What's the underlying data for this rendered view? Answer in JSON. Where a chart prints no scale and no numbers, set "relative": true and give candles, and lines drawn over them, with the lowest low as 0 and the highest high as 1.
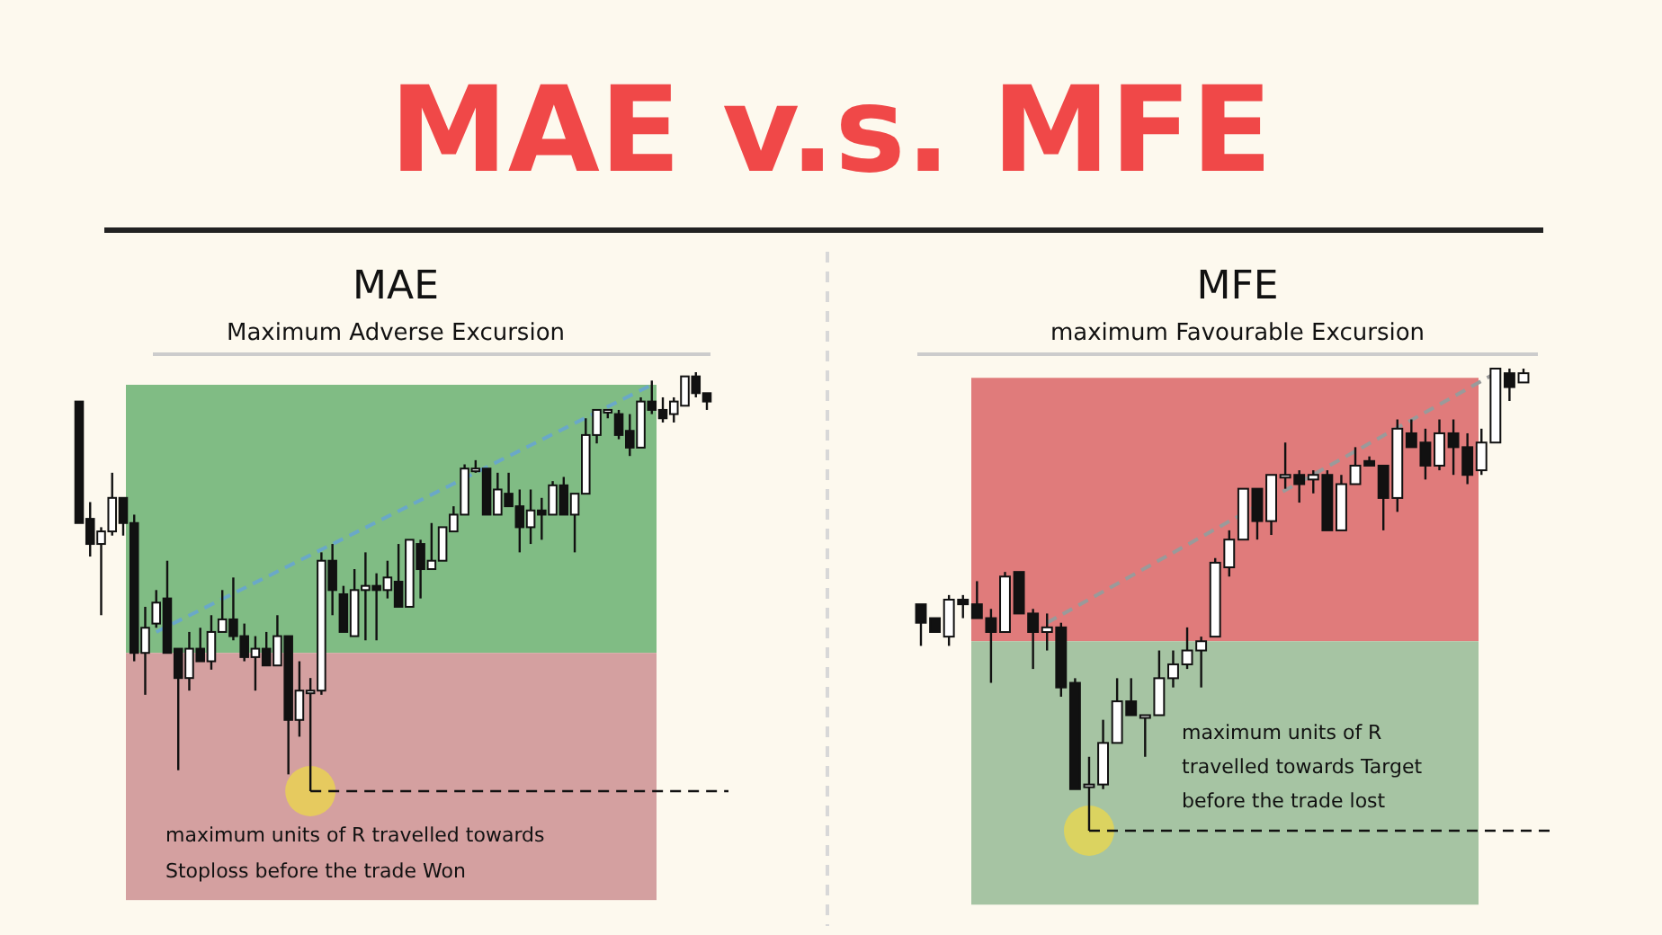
{
  "chart_data": [
    {
      "type": "other",
      "title": "MAE v.s. MFE"
    },
    {
      "type": "candlestick",
      "title": "MAE",
      "subtitle": "Maximum Adverse Excursion",
      "relative": true,
      "categories": [
        null,
        null,
        null,
        null,
        null,
        null,
        null,
        null,
        null,
        null,
        null,
        null,
        null,
        null,
        null,
        null,
        null,
        null,
        null,
        null,
        null,
        null,
        null,
        null,
        null,
        null,
        null,
        null,
        null,
        null,
        null,
        null,
        null,
        null,
        null,
        null,
        null,
        null,
        null,
        null,
        null,
        null,
        null,
        null,
        null,
        null,
        null,
        null,
        null,
        null,
        null,
        null,
        null,
        null,
        null,
        null,
        null,
        null
      ],
      "ohlc": [
        [
          0.93,
          0.93,
          0.64,
          0.64
        ],
        [
          0.65,
          0.69,
          0.56,
          0.59
        ],
        [
          0.59,
          0.63,
          0.42,
          0.62
        ],
        [
          0.62,
          0.76,
          0.61,
          0.7
        ],
        [
          0.7,
          0.7,
          0.61,
          0.64
        ],
        [
          0.64,
          0.66,
          0.31,
          0.33
        ],
        [
          0.33,
          0.44,
          0.23,
          0.39
        ],
        [
          0.4,
          0.48,
          0.39,
          0.45
        ],
        [
          0.46,
          0.55,
          0.33,
          0.33
        ],
        [
          0.34,
          0.34,
          0.05,
          0.27
        ],
        [
          0.27,
          0.38,
          0.24,
          0.34
        ],
        [
          0.34,
          0.39,
          0.31,
          0.31
        ],
        [
          0.31,
          0.42,
          0.29,
          0.38
        ],
        [
          0.38,
          0.48,
          0.38,
          0.41
        ],
        [
          0.41,
          0.51,
          0.36,
          0.37
        ],
        [
          0.37,
          0.4,
          0.31,
          0.32
        ],
        [
          0.32,
          0.37,
          0.24,
          0.34
        ],
        [
          0.34,
          0.38,
          0.3,
          0.3
        ],
        [
          0.3,
          0.42,
          0.3,
          0.37
        ],
        [
          0.37,
          0.37,
          0.04,
          0.17
        ],
        [
          0.17,
          0.31,
          0.13,
          0.24
        ],
        [
          0.24,
          0.27,
          0,
          0.24
        ],
        [
          0.24,
          0.57,
          0.23,
          0.55
        ],
        [
          0.55,
          0.59,
          0.42,
          0.48
        ],
        [
          0.47,
          0.49,
          0.38,
          0.38
        ],
        [
          0.37,
          0.53,
          0.37,
          0.48
        ],
        [
          0.48,
          0.57,
          0.36,
          0.49
        ],
        [
          0.49,
          0.52,
          0.36,
          0.48
        ],
        [
          0.48,
          0.55,
          0.46,
          0.51
        ],
        [
          0.5,
          0.59,
          0.44,
          0.44
        ],
        [
          0.44,
          0.6,
          0.44,
          0.6
        ],
        [
          0.59,
          0.6,
          0.46,
          0.53
        ],
        [
          0.53,
          0.64,
          0.53,
          0.55
        ],
        [
          0.55,
          0.63,
          0.55,
          0.63
        ],
        [
          0.62,
          0.68,
          0.62,
          0.66
        ],
        [
          0.66,
          0.78,
          0.66,
          0.77
        ],
        [
          0.77,
          0.79,
          0.76,
          0.77
        ],
        [
          0.77,
          0.77,
          0.66,
          0.66
        ],
        [
          0.66,
          0.76,
          0.66,
          0.72
        ],
        [
          0.71,
          0.76,
          0.68,
          0.68
        ],
        [
          0.68,
          0.72,
          0.57,
          0.63
        ],
        [
          0.63,
          0.72,
          0.59,
          0.67
        ],
        [
          0.67,
          0.7,
          0.6,
          0.66
        ],
        [
          0.66,
          0.74,
          0.66,
          0.73
        ],
        [
          0.73,
          0.75,
          0.66,
          0.66
        ],
        [
          0.66,
          0.71,
          0.57,
          0.71
        ],
        [
          0.71,
          0.89,
          0.71,
          0.85
        ],
        [
          0.85,
          0.91,
          0.83,
          0.91
        ],
        [
          0.91,
          0.91,
          0.89,
          0.91
        ],
        [
          0.9,
          0.91,
          0.84,
          0.85
        ],
        [
          0.86,
          0.9,
          0.8,
          0.82
        ],
        [
          0.82,
          0.94,
          0.82,
          0.93
        ],
        [
          0.93,
          0.98,
          0.9,
          0.91
        ],
        [
          0.91,
          0.94,
          0.88,
          0.89
        ],
        [
          0.9,
          0.94,
          0.88,
          0.93
        ],
        [
          0.92,
          0.99,
          0.92,
          0.99
        ],
        [
          0.99,
          1.0,
          0.94,
          0.95
        ],
        [
          0.95,
          0.95,
          0.91,
          0.93
        ]
      ],
      "series": [
        {
          "type": "line",
          "color": "#6aa8c8",
          "line_style": "dashed",
          "values": [
            null,
            null,
            null,
            null,
            null,
            null,
            null,
            0.38,
            null,
            null,
            null,
            null,
            null,
            null,
            null,
            null,
            null,
            null,
            null,
            null,
            null,
            null,
            null,
            null,
            null,
            null,
            null,
            null,
            null,
            null,
            null,
            null,
            null,
            null,
            null,
            null,
            null,
            null,
            null,
            null,
            null,
            null,
            null,
            null,
            null,
            null,
            null,
            null,
            null,
            null,
            null,
            null,
            0.97,
            null,
            null,
            null,
            null,
            null
          ]
        }
      ],
      "bands": [
        {
          "axis": "y",
          "from": 0.33,
          "to": 0.97,
          "color": "#80bc84"
        },
        {
          "axis": "y",
          "from": -0.26,
          "to": 0.33,
          "color": "#d4a0a0"
        }
      ],
      "ref_lines": [
        {
          "axis": "y",
          "value": 0,
          "line_style": "dashed"
        }
      ],
      "annotations": [
        "maximum units of R travelled towards Stoploss before the trade Won"
      ]
    },
    {
      "type": "candlestick",
      "title": "MFE",
      "subtitle": "maximum Favourable Excursion",
      "relative": true,
      "categories": [
        null,
        null,
        null,
        null,
        null,
        null,
        null,
        null,
        null,
        null,
        null,
        null,
        null,
        null,
        null,
        null,
        null,
        null,
        null,
        null,
        null,
        null,
        null,
        null,
        null,
        null,
        null,
        null,
        null,
        null,
        null,
        null,
        null,
        null,
        null,
        null,
        null,
        null,
        null,
        null,
        null,
        null,
        null,
        null
      ],
      "ohlc": [
        [
          0.49,
          0.49,
          0.4,
          0.45
        ],
        [
          0.46,
          0.46,
          0.43,
          0.43
        ],
        [
          0.42,
          0.51,
          0.4,
          0.5
        ],
        [
          0.5,
          0.51,
          0.46,
          0.49
        ],
        [
          0.49,
          0.54,
          0.46,
          0.46
        ],
        [
          0.46,
          0.48,
          0.32,
          0.43
        ],
        [
          0.43,
          0.56,
          0.43,
          0.55
        ],
        [
          0.56,
          0.56,
          0.47,
          0.47
        ],
        [
          0.47,
          0.48,
          0.35,
          0.43
        ],
        [
          0.43,
          0.47,
          0.39,
          0.44
        ],
        [
          0.44,
          0.45,
          0.29,
          0.31
        ],
        [
          0.32,
          0.33,
          0.09,
          0.09
        ],
        [
          0.1,
          0.16,
          0,
          0.1
        ],
        [
          0.1,
          0.24,
          0.09,
          0.19
        ],
        [
          0.19,
          0.33,
          0.19,
          0.28
        ],
        [
          0.28,
          0.33,
          0.25,
          0.25
        ],
        [
          0.25,
          0.25,
          0.16,
          0.25
        ],
        [
          0.25,
          0.39,
          0.25,
          0.33
        ],
        [
          0.33,
          0.39,
          0.31,
          0.36
        ],
        [
          0.36,
          0.44,
          0.35,
          0.39
        ],
        [
          0.39,
          0.42,
          0.31,
          0.41
        ],
        [
          0.42,
          0.59,
          0.42,
          0.58
        ],
        [
          0.57,
          0.65,
          0.55,
          0.63
        ],
        [
          0.63,
          0.74,
          0.63,
          0.74
        ],
        [
          0.74,
          0.74,
          0.63,
          0.67
        ],
        [
          0.67,
          0.77,
          0.64,
          0.77
        ],
        [
          0.77,
          0.84,
          0.74,
          0.77
        ],
        [
          0.77,
          0.78,
          0.71,
          0.75
        ],
        [
          0.76,
          0.78,
          0.73,
          0.77
        ],
        [
          0.77,
          0.78,
          0.65,
          0.65
        ],
        [
          0.65,
          0.77,
          0.65,
          0.75
        ],
        [
          0.75,
          0.83,
          0.75,
          0.79
        ],
        [
          0.8,
          0.81,
          0.79,
          0.79
        ],
        [
          0.79,
          0.79,
          0.65,
          0.72
        ],
        [
          0.72,
          0.89,
          0.69,
          0.87
        ],
        [
          0.86,
          0.89,
          0.83,
          0.83
        ],
        [
          0.84,
          0.87,
          0.76,
          0.79
        ],
        [
          0.79,
          0.89,
          0.78,
          0.86
        ],
        [
          0.86,
          0.89,
          0.77,
          0.83
        ],
        [
          0.83,
          0.86,
          0.75,
          0.77
        ],
        [
          0.78,
          0.87,
          0.77,
          0.84
        ],
        [
          0.84,
          1.0,
          0.84,
          1.0
        ],
        [
          0.99,
          1.0,
          0.93,
          0.96
        ],
        [
          0.97,
          1.0,
          0.97,
          0.99
        ]
      ],
      "series": [
        {
          "type": "line",
          "color": "#9a9a9a",
          "line_style": "dashed",
          "values": [
            null,
            null,
            null,
            null,
            null,
            null,
            null,
            null,
            null,
            0.45,
            null,
            null,
            null,
            null,
            null,
            null,
            null,
            null,
            null,
            null,
            null,
            null,
            null,
            null,
            null,
            null,
            null,
            null,
            null,
            null,
            null,
            null,
            null,
            null,
            null,
            null,
            null,
            null,
            null,
            null,
            null,
            0.99,
            null,
            null
          ]
        }
      ],
      "bands": [
        {
          "axis": "y",
          "from": 0.41,
          "to": 0.98,
          "color": "#e07b7b"
        },
        {
          "axis": "y",
          "from": -0.16,
          "to": 0.41,
          "color": "#a6c4a3"
        }
      ],
      "ref_lines": [
        {
          "axis": "y",
          "value": 0,
          "line_style": "dashed"
        }
      ],
      "annotations": [
        "maximum units of R travelled towards Target before the trade lost"
      ]
    }
  ]
}
